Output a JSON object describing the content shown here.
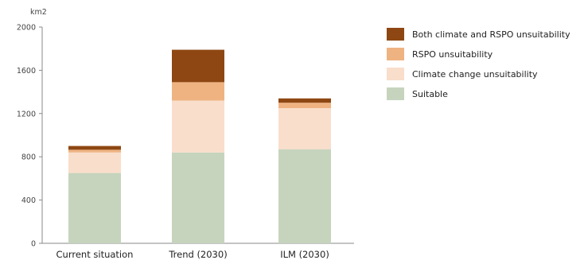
{
  "chart_data": {
    "type": "bar",
    "stacked": true,
    "unit_label": "km2",
    "categories": [
      "Current situation",
      "Trend (2030)",
      "ILM (2030)"
    ],
    "ylim": [
      0,
      2000
    ],
    "yticks": [
      0,
      400,
      800,
      1200,
      1600,
      2000
    ],
    "grid": false,
    "legend_position": "right",
    "series": [
      {
        "name": "Suitable",
        "color": "#c6d4bd",
        "values": [
          650,
          840,
          870
        ]
      },
      {
        "name": "Climate change unsuitability",
        "color": "#f9decb",
        "values": [
          190,
          480,
          380
        ]
      },
      {
        "name": "RSPO unsuitability",
        "color": "#efb382",
        "values": [
          25,
          170,
          50
        ]
      },
      {
        "name": "Both climate and RSPO unsuitability",
        "color": "#8e4712",
        "values": [
          35,
          300,
          40
        ]
      }
    ]
  }
}
